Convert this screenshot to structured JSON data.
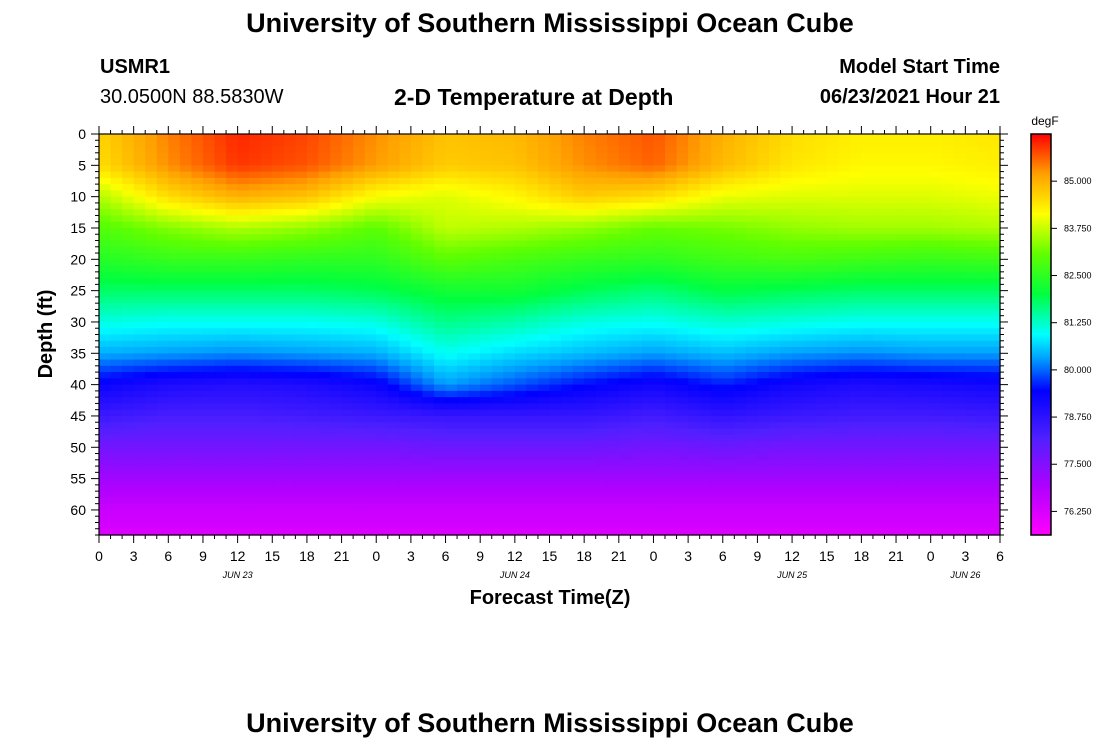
{
  "header": {
    "title_top": "University of Southern Mississippi Ocean Cube",
    "title_bottom": "University of Southern Mississippi Ocean Cube",
    "station_id": "USMR1",
    "station_coords": "30.0500N  88.5830W",
    "plot_title": "2-D Temperature at Depth",
    "model_start_label": "Model Start Time",
    "model_start_value": "06/23/2021 Hour 21"
  },
  "chart_data": {
    "type": "heatmap",
    "title": "2-D Temperature at Depth",
    "xlabel": "Forecast Time(Z)",
    "ylabel": "Depth (ft)",
    "x_range_hours": [
      0,
      78
    ],
    "x_ticks": [
      "0",
      "3",
      "6",
      "9",
      "12",
      "15",
      "18",
      "21",
      "0",
      "3",
      "6",
      "9",
      "12",
      "15",
      "18",
      "21",
      "0",
      "3",
      "6",
      "9",
      "12",
      "15",
      "18",
      "21",
      "0",
      "3",
      "6"
    ],
    "date_labels": [
      {
        "text": "JUN 23",
        "hour": 12
      },
      {
        "text": "JUN 24",
        "hour": 36
      },
      {
        "text": "JUN 25",
        "hour": 60
      },
      {
        "text": "JUN 26",
        "hour": 75
      }
    ],
    "y_range_ft": [
      0,
      64
    ],
    "y_ticks": [
      "0",
      "5",
      "10",
      "15",
      "20",
      "25",
      "30",
      "35",
      "40",
      "45",
      "50",
      "55",
      "60"
    ],
    "colorbar": {
      "unit": "degF",
      "min": 75.625,
      "max": 86.25,
      "ticks": [
        "85.000",
        "83.750",
        "82.500",
        "81.250",
        "80.000",
        "78.750",
        "77.500",
        "76.250"
      ]
    },
    "depth_ft": [
      0,
      5,
      10,
      15,
      20,
      25,
      30,
      35,
      40,
      45,
      50,
      55,
      60,
      64
    ],
    "hours": [
      0,
      6,
      12,
      18,
      24,
      30,
      36,
      42,
      48,
      54,
      60,
      66,
      72,
      78
    ],
    "temperature_degF": [
      [
        84.6,
        85.4,
        86.0,
        85.8,
        85.3,
        84.8,
        84.9,
        85.4,
        85.7,
        85.0,
        84.5,
        84.3,
        84.3,
        84.4
      ],
      [
        84.5,
        85.3,
        85.9,
        85.7,
        85.2,
        84.7,
        84.8,
        85.3,
        85.6,
        84.9,
        84.4,
        84.2,
        84.2,
        84.3
      ],
      [
        83.6,
        84.5,
        85.0,
        84.8,
        84.1,
        83.9,
        84.2,
        84.7,
        84.5,
        84.0,
        83.9,
        83.9,
        83.9,
        84.0
      ],
      [
        82.9,
        83.3,
        83.6,
        83.4,
        83.0,
        83.7,
        83.6,
        83.4,
        83.1,
        83.2,
        83.4,
        83.5,
        83.5,
        83.6
      ],
      [
        82.4,
        82.6,
        82.6,
        82.5,
        82.5,
        83.0,
        82.8,
        82.6,
        82.5,
        82.7,
        82.8,
        82.7,
        82.6,
        82.7
      ],
      [
        81.8,
        81.8,
        81.8,
        81.8,
        81.9,
        82.2,
        82.2,
        81.9,
        81.7,
        82.0,
        81.9,
        81.8,
        81.8,
        81.8
      ],
      [
        81.1,
        81.0,
        81.0,
        81.0,
        81.1,
        81.6,
        81.4,
        81.1,
        81.0,
        81.2,
        81.1,
        81.0,
        81.0,
        81.0
      ],
      [
        80.4,
        80.3,
        80.2,
        80.3,
        80.4,
        81.0,
        80.7,
        80.5,
        80.3,
        80.5,
        80.3,
        80.2,
        80.3,
        80.3
      ],
      [
        79.3,
        79.0,
        78.9,
        79.0,
        79.3,
        80.3,
        79.9,
        79.5,
        79.2,
        79.6,
        79.2,
        79.0,
        79.1,
        79.2
      ],
      [
        78.5,
        78.3,
        78.3,
        78.4,
        78.5,
        78.6,
        78.6,
        78.6,
        78.4,
        78.7,
        78.5,
        78.4,
        78.4,
        78.5
      ],
      [
        77.7,
        77.7,
        77.7,
        77.7,
        77.7,
        77.8,
        77.8,
        77.8,
        77.7,
        77.8,
        77.7,
        77.7,
        77.7,
        77.7
      ],
      [
        77.1,
        77.1,
        77.1,
        77.1,
        77.1,
        77.1,
        77.1,
        77.1,
        77.1,
        77.1,
        77.1,
        77.1,
        77.1,
        77.1
      ],
      [
        76.5,
        76.5,
        76.5,
        76.5,
        76.5,
        76.5,
        76.5,
        76.5,
        76.5,
        76.5,
        76.5,
        76.5,
        76.5,
        76.5
      ],
      [
        76.2,
        76.2,
        76.2,
        76.2,
        76.2,
        76.2,
        76.2,
        76.2,
        76.2,
        76.2,
        76.2,
        76.2,
        76.2,
        76.2
      ]
    ]
  }
}
